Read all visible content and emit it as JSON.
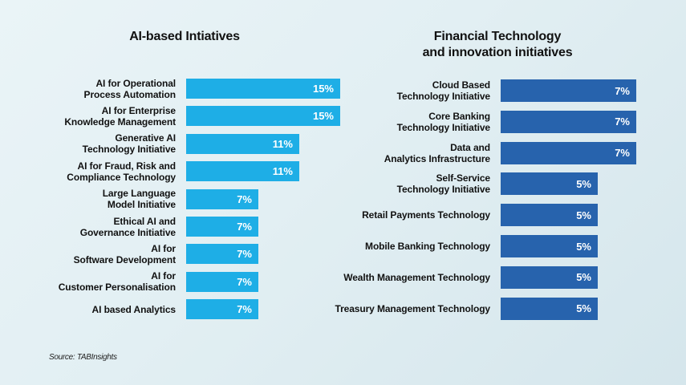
{
  "chart_data": [
    {
      "type": "bar",
      "orientation": "horizontal",
      "title": "AI-based Intiatives",
      "categories": [
        "AI for Operational Process Automation",
        "AI for Enterprise Knowledge Management",
        "Generative AI Technology Initiative",
        "AI for Fraud, Risk and Compliance Technology",
        "Large Language Model Initiative",
        "Ethical AI and Governance Initiative",
        "AI for Software Development",
        "AI for Customer Personalisation",
        "AI based Analytics"
      ],
      "values": [
        15,
        15,
        11,
        11,
        7,
        7,
        7,
        7,
        7
      ],
      "value_labels": [
        "15%",
        "15%",
        "11%",
        "11%",
        "7%",
        "7%",
        "7%",
        "7%",
        "7%"
      ],
      "unit": "%",
      "color": "#1eaee6",
      "xlabel": "",
      "ylabel": "",
      "grid": false,
      "legend": null
    },
    {
      "type": "bar",
      "orientation": "horizontal",
      "title": "Financial Technology and innovation initiatives",
      "categories": [
        "Cloud Based Technology Initiative",
        "Core Banking Technology Initiative",
        "Data and Analytics Infrastructure",
        "Self-Service Technology Initiative",
        "Retail Payments Technology",
        "Mobile Banking Technology",
        "Wealth Management Technology",
        "Treasury Management Technology"
      ],
      "values": [
        7,
        7,
        7,
        5,
        5,
        5,
        5,
        5
      ],
      "value_labels": [
        "7%",
        "7%",
        "7%",
        "5%",
        "5%",
        "5%",
        "5%",
        "5%"
      ],
      "unit": "%",
      "color": "#2763ad",
      "xlabel": "",
      "ylabel": "",
      "grid": false,
      "legend": null
    }
  ],
  "left": {
    "title": "AI-based Intiatives",
    "color": "#1eaee6",
    "rows": [
      {
        "line1": "AI for Operational",
        "line2": "Process Automation",
        "value": "15%"
      },
      {
        "line1": "AI for Enterprise",
        "line2": "Knowledge Management",
        "value": "15%"
      },
      {
        "line1": "Generative AI",
        "line2": "Technology Initiative",
        "value": "11%"
      },
      {
        "line1": "AI for Fraud, Risk and",
        "line2": "Compliance Technology",
        "value": "11%"
      },
      {
        "line1": "Large Language",
        "line2": "Model Initiative",
        "value": "7%"
      },
      {
        "line1": "Ethical AI and",
        "line2": "Governance Initiative",
        "value": "7%"
      },
      {
        "line1": "AI for",
        "line2": "Software Development",
        "value": "7%"
      },
      {
        "line1": "AI for",
        "line2": "Customer Personalisation",
        "value": "7%"
      },
      {
        "line1": "AI based Analytics",
        "line2": "",
        "value": "7%"
      }
    ]
  },
  "right": {
    "title_line1": "Financial Technology",
    "title_line2": "and innovation initiatives",
    "color": "#2763ad",
    "rows": [
      {
        "line1": "Cloud Based",
        "line2": "Technology Initiative",
        "value": "7%"
      },
      {
        "line1": "Core Banking",
        "line2": "Technology Initiative",
        "value": "7%"
      },
      {
        "line1": "Data and",
        "line2": "Analytics Infrastructure",
        "value": "7%"
      },
      {
        "line1": "Self-Service",
        "line2": "Technology Initiative",
        "value": "5%"
      },
      {
        "line1": "Retail Payments Technology",
        "line2": "",
        "value": "5%"
      },
      {
        "line1": "Mobile Banking Technology",
        "line2": "",
        "value": "5%"
      },
      {
        "line1": "Wealth Management Technology",
        "line2": "",
        "value": "5%"
      },
      {
        "line1": "Treasury Management Technology",
        "line2": "",
        "value": "5%"
      }
    ]
  },
  "source": "Source: TABInsights"
}
